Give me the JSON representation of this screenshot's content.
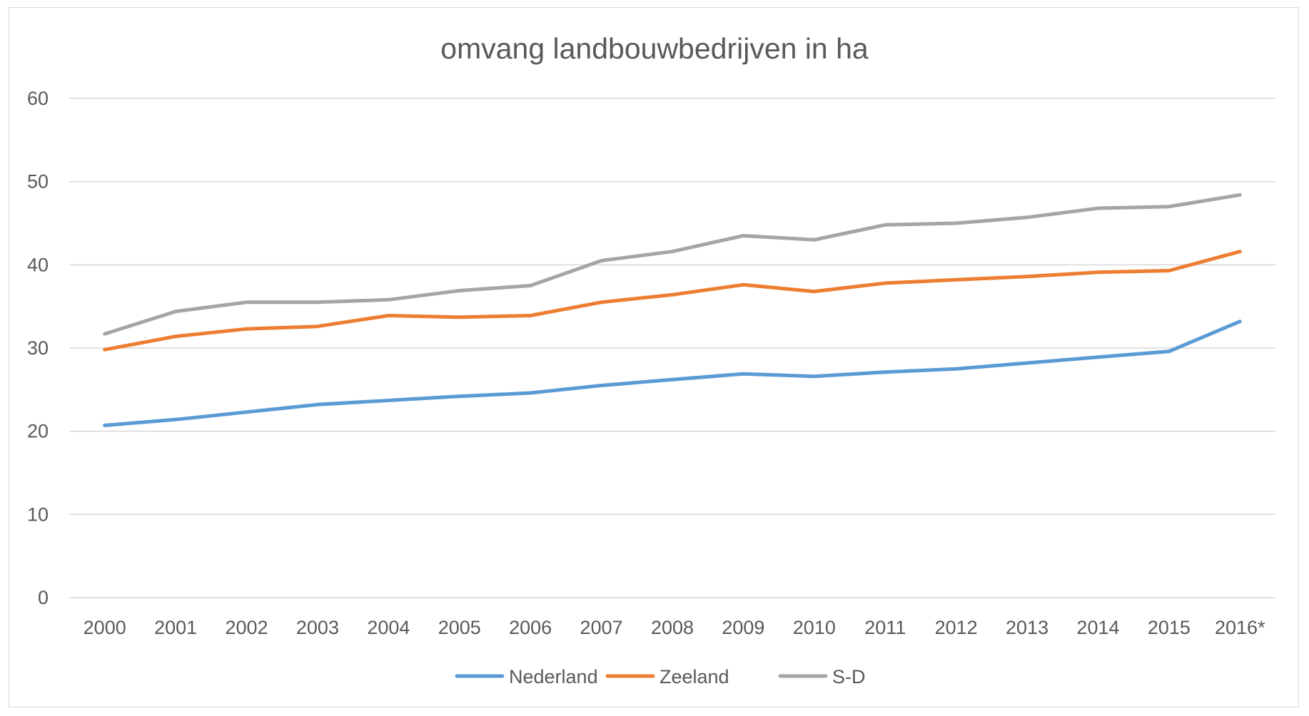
{
  "chart_data": {
    "type": "line",
    "title": "omvang landbouwbedrijven  in ha",
    "xlabel": "",
    "ylabel": "",
    "categories": [
      "2000",
      "2001",
      "2002",
      "2003",
      "2004",
      "2005",
      "2006",
      "2007",
      "2008",
      "2009",
      "2010",
      "2011",
      "2012",
      "2013",
      "2014",
      "2015",
      "2016*"
    ],
    "ylim": [
      0,
      60
    ],
    "yticks": [
      0,
      10,
      20,
      30,
      40,
      50,
      60
    ],
    "grid": true,
    "legend_position": "bottom",
    "series": [
      {
        "name": "Nederland",
        "color": "#5b9bd5",
        "values": [
          20.7,
          21.4,
          22.3,
          23.2,
          23.7,
          24.2,
          24.6,
          25.5,
          26.2,
          26.9,
          26.6,
          27.1,
          27.5,
          28.2,
          28.9,
          29.6,
          33.2
        ]
      },
      {
        "name": "Zeeland",
        "color": "#ed7d31",
        "values": [
          29.8,
          31.4,
          32.3,
          32.6,
          33.9,
          33.7,
          33.9,
          35.5,
          36.4,
          37.6,
          36.8,
          37.8,
          38.2,
          38.6,
          39.1,
          39.3,
          41.6
        ]
      },
      {
        "name": "S-D",
        "color": "#a5a5a5",
        "values": [
          31.7,
          34.4,
          35.5,
          35.5,
          35.8,
          36.9,
          37.5,
          40.5,
          41.6,
          43.5,
          43.0,
          44.8,
          45.0,
          45.7,
          46.8,
          47.0,
          48.4
        ]
      }
    ]
  }
}
